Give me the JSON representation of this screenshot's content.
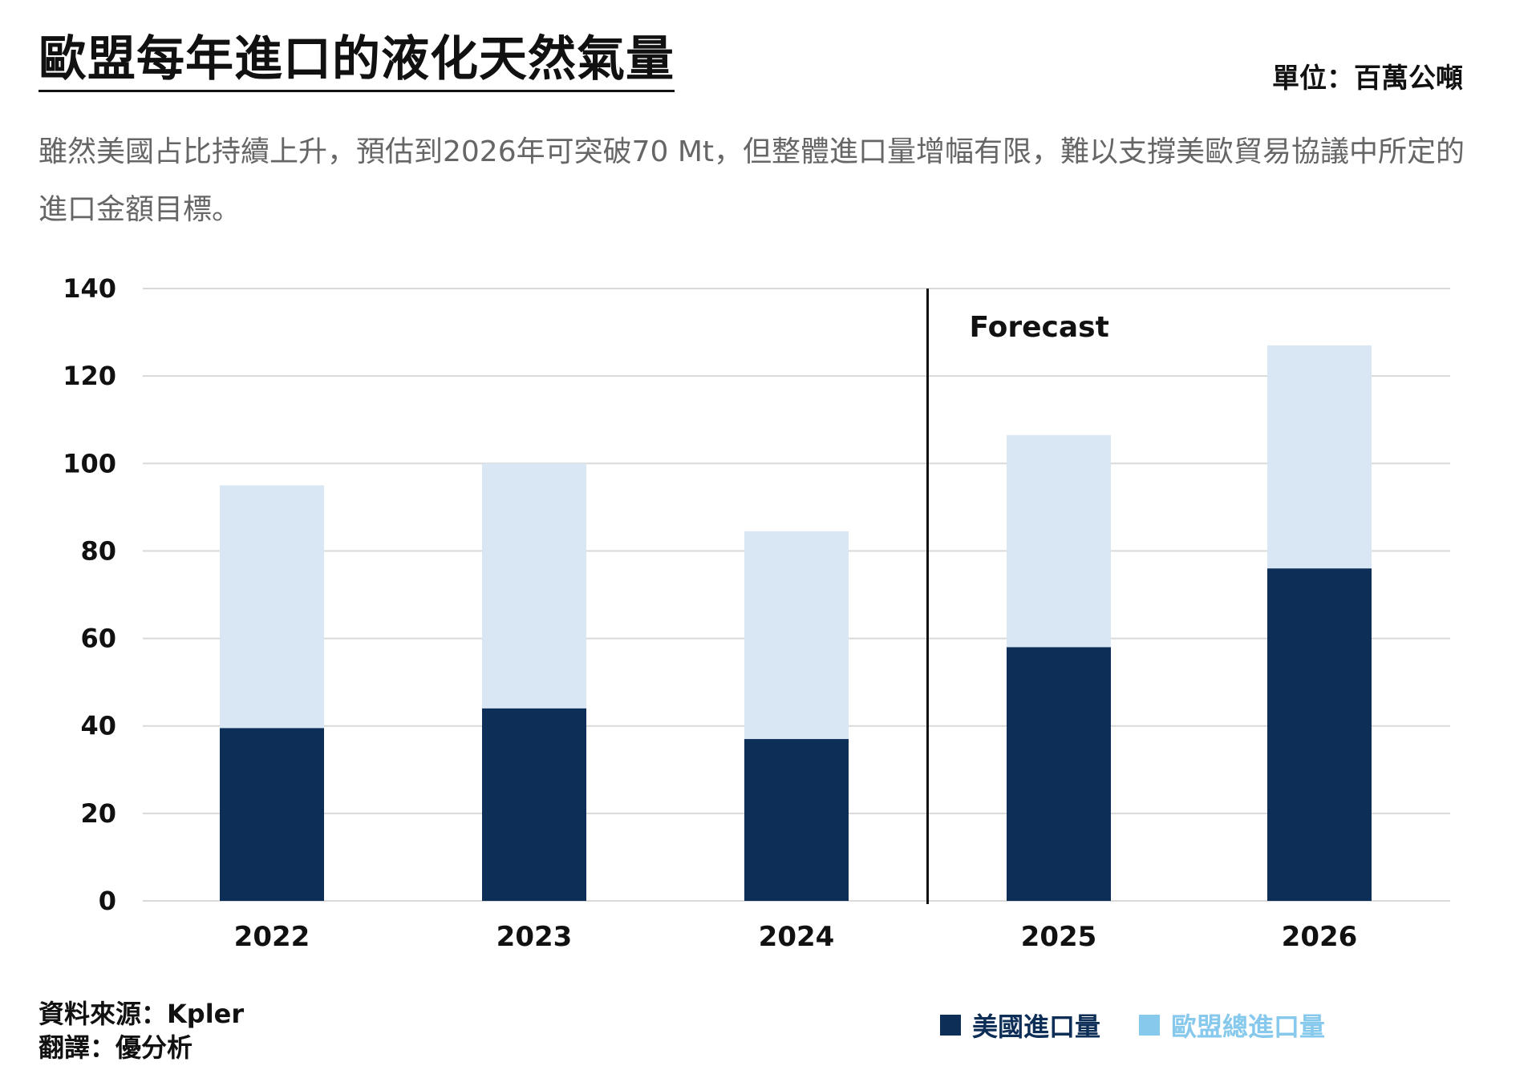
{
  "header": {
    "title": "歐盟每年進口的液化天然氣量",
    "unit": "單位：百萬公噸",
    "subtitle": "雖然美國占比持續上升，預估到2026年可突破70 Mt，但整體進口量增幅有限，難以支撐美歐貿易協議中所定的進口金額目標。"
  },
  "footer": {
    "source": "資料來源：Kpler",
    "translation": "翻譯：優分析"
  },
  "legend": {
    "us": "美國進口量",
    "eu": "歐盟總進口量"
  },
  "colors": {
    "us": "#0d2e57",
    "eu": "#d9e7f5",
    "legend_eu": "#86c9ec",
    "grid": "#d9d9d9",
    "text": "#111111"
  },
  "chart_data": {
    "type": "bar",
    "categories": [
      "2022",
      "2023",
      "2024",
      "2025",
      "2026"
    ],
    "series": [
      {
        "name": "美國進口量",
        "values": [
          39.5,
          44,
          37,
          58,
          76
        ]
      },
      {
        "name": "歐盟總進口量",
        "values": [
          95,
          100,
          84.5,
          106.5,
          127
        ]
      }
    ],
    "ylim": [
      0,
      140
    ],
    "yticks": [
      0,
      20,
      40,
      60,
      80,
      100,
      120,
      140
    ],
    "grid": true,
    "annotation": "Forecast",
    "forecast_start": "2025",
    "legend_position": "bottom-right"
  }
}
